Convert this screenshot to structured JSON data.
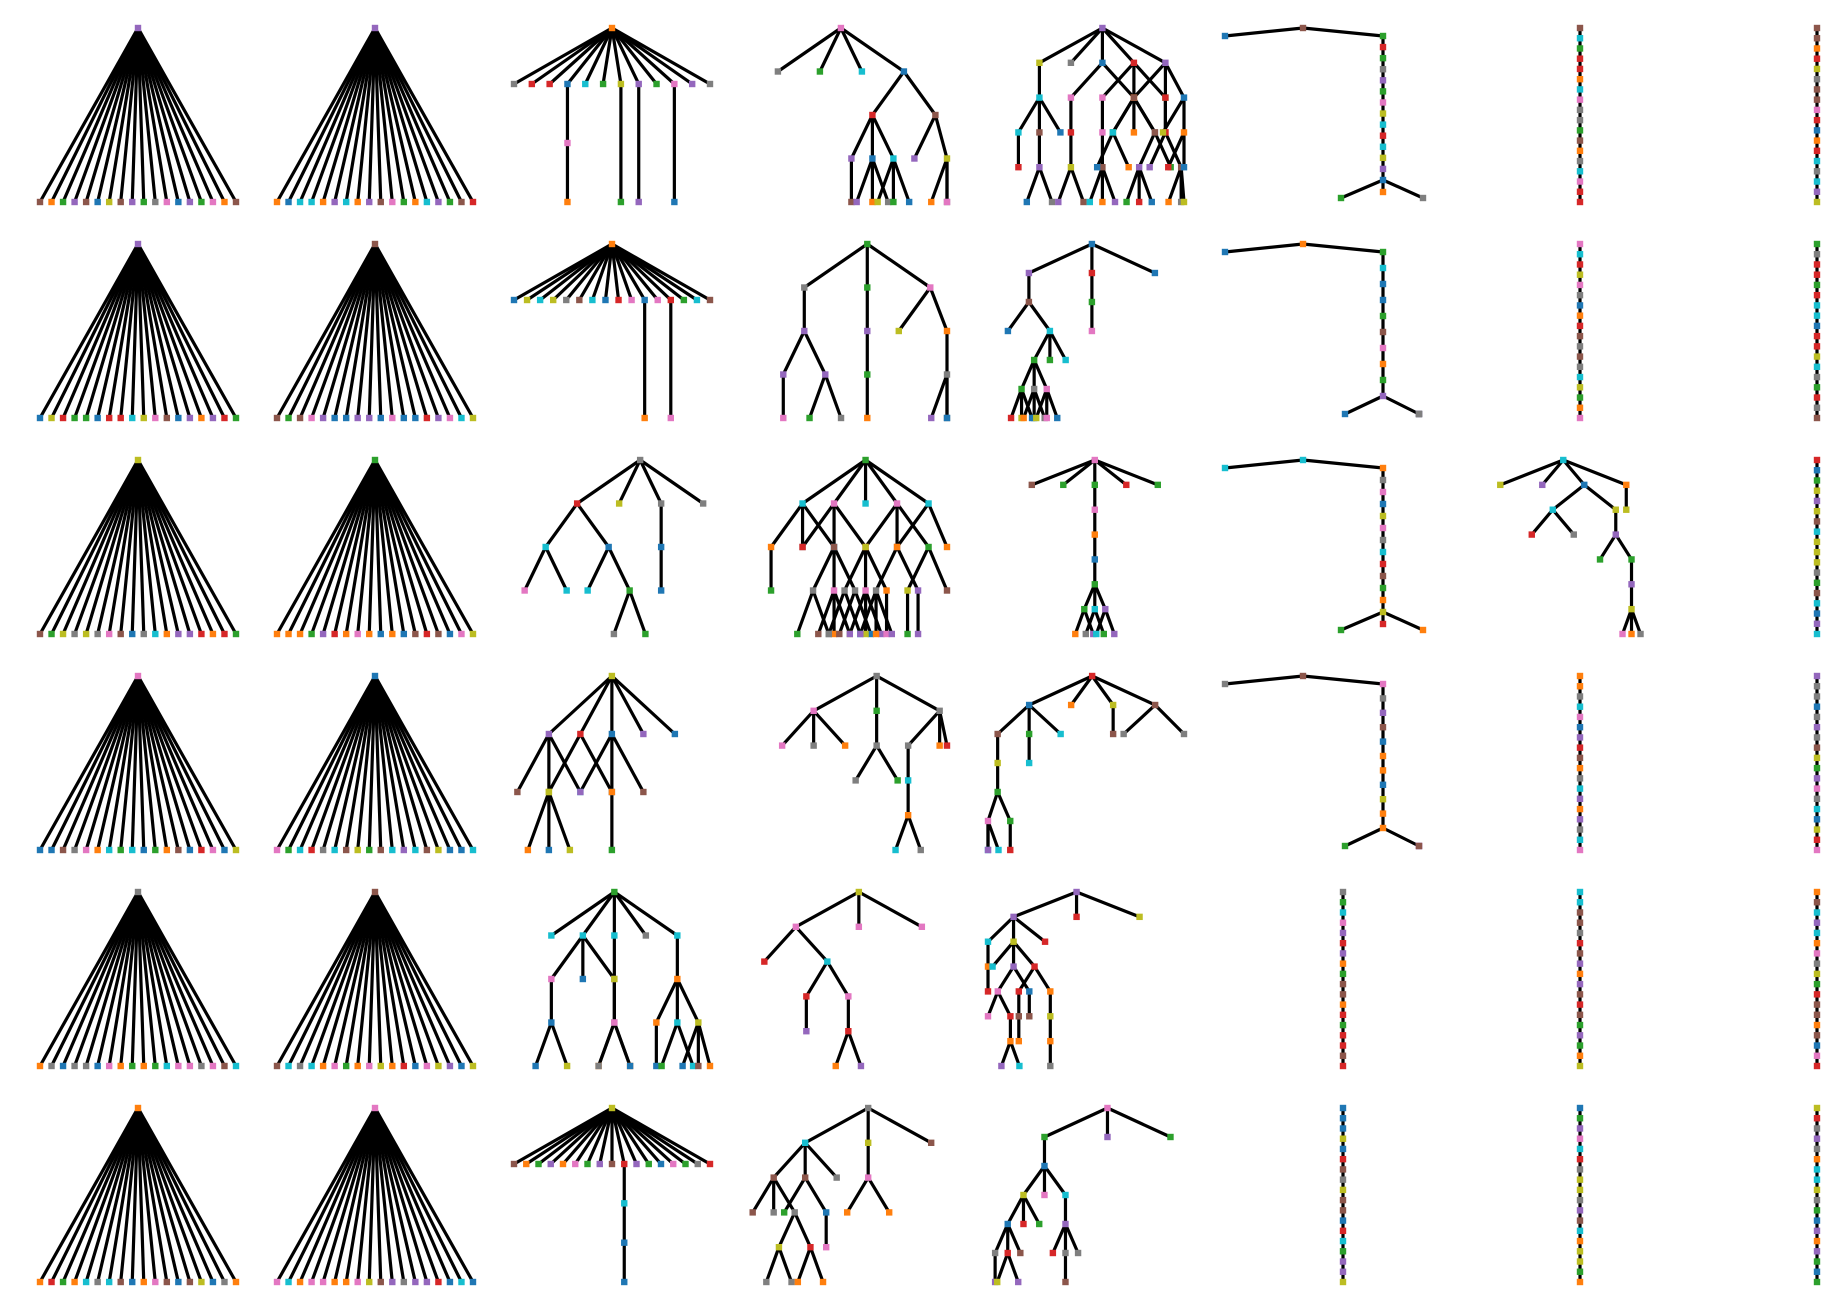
{
  "figure": {
    "type": "tree-grid",
    "rows": 6,
    "columns": 8,
    "edge_color": "#000000",
    "background": "#ffffff",
    "node_palette": [
      "#1f77b4",
      "#ff7f0e",
      "#2ca02c",
      "#d62728",
      "#9467bd",
      "#8c564b",
      "#e377c2",
      "#7f7f7f",
      "#bcbd22",
      "#17becf"
    ]
  },
  "panels": [
    {
      "id": "r1c1",
      "row": 1,
      "col": 1,
      "kind": "star",
      "leaves": 18
    },
    {
      "id": "r1c2",
      "row": 1,
      "col": 2,
      "kind": "star",
      "leaves": 18
    },
    {
      "id": "r1c3",
      "row": 1,
      "col": 3,
      "kind": "broom",
      "top_children": 12,
      "tails": [
        [
          3,
          2
        ],
        [
          6,
          1
        ],
        [
          7,
          1
        ],
        [
          9,
          1
        ]
      ]
    },
    {
      "id": "r1c4",
      "row": 1,
      "col": 4,
      "kind": "hierarchy",
      "levels": 4,
      "branching": "mixed"
    },
    {
      "id": "r1c5",
      "row": 1,
      "col": 5,
      "kind": "hierarchy",
      "levels": 5,
      "branching": "mixed"
    },
    {
      "id": "r1c6",
      "row": 1,
      "col": 6,
      "kind": "chain-fork",
      "chain_length": 14,
      "fork": 3
    },
    {
      "id": "r1c7",
      "row": 1,
      "col": 7,
      "kind": "path",
      "length": 18
    },
    {
      "id": "r1c8",
      "row": 1,
      "col": 8,
      "kind": "path",
      "length": 18
    },
    {
      "id": "r2c1",
      "row": 2,
      "col": 1,
      "kind": "star",
      "leaves": 18
    },
    {
      "id": "r2c2",
      "row": 2,
      "col": 2,
      "kind": "star",
      "leaves": 18
    },
    {
      "id": "r2c3",
      "row": 2,
      "col": 3,
      "kind": "broom",
      "top_children": 16,
      "tails": [
        [
          10,
          1
        ],
        [
          12,
          1
        ]
      ]
    },
    {
      "id": "r2c4",
      "row": 2,
      "col": 4,
      "kind": "hierarchy",
      "levels": 4,
      "branching": "mixed"
    },
    {
      "id": "r2c5",
      "row": 2,
      "col": 5,
      "kind": "hierarchy",
      "levels": 6,
      "branching": "mixed"
    },
    {
      "id": "r2c6",
      "row": 2,
      "col": 6,
      "kind": "chain-fork",
      "chain_length": 10,
      "fork": 2
    },
    {
      "id": "r2c7",
      "row": 2,
      "col": 7,
      "kind": "path",
      "length": 18
    },
    {
      "id": "r2c8",
      "row": 2,
      "col": 8,
      "kind": "path",
      "length": 18
    },
    {
      "id": "r3c1",
      "row": 3,
      "col": 1,
      "kind": "star",
      "leaves": 18
    },
    {
      "id": "r3c2",
      "row": 3,
      "col": 2,
      "kind": "star",
      "leaves": 18
    },
    {
      "id": "r3c3",
      "row": 3,
      "col": 3,
      "kind": "hierarchy",
      "levels": 4,
      "branching": "mixed"
    },
    {
      "id": "r3c4",
      "row": 3,
      "col": 4,
      "kind": "hierarchy",
      "levels": 4,
      "branching": "mixed"
    },
    {
      "id": "r3c5",
      "row": 3,
      "col": 5,
      "kind": "hierarchy",
      "levels": 7,
      "branching": "mixed"
    },
    {
      "id": "r3c6",
      "row": 3,
      "col": 6,
      "kind": "chain-fork",
      "chain_length": 13,
      "fork": 3
    },
    {
      "id": "r3c7",
      "row": 3,
      "col": 7,
      "kind": "hierarchy",
      "levels": 7,
      "branching": "mixed"
    },
    {
      "id": "r3c8",
      "row": 3,
      "col": 8,
      "kind": "path",
      "length": 18
    },
    {
      "id": "r4c1",
      "row": 4,
      "col": 1,
      "kind": "star",
      "leaves": 18
    },
    {
      "id": "r4c2",
      "row": 4,
      "col": 2,
      "kind": "star",
      "leaves": 18
    },
    {
      "id": "r4c3",
      "row": 4,
      "col": 3,
      "kind": "hierarchy",
      "levels": 3,
      "branching": "mixed"
    },
    {
      "id": "r4c4",
      "row": 4,
      "col": 4,
      "kind": "hierarchy",
      "levels": 5,
      "branching": "mixed"
    },
    {
      "id": "r4c5",
      "row": 4,
      "col": 5,
      "kind": "hierarchy",
      "levels": 6,
      "branching": "mixed"
    },
    {
      "id": "r4c6",
      "row": 4,
      "col": 6,
      "kind": "chain-fork",
      "chain_length": 11,
      "fork": 2
    },
    {
      "id": "r4c7",
      "row": 4,
      "col": 7,
      "kind": "path",
      "length": 18
    },
    {
      "id": "r4c8",
      "row": 4,
      "col": 8,
      "kind": "path",
      "length": 18
    },
    {
      "id": "r5c1",
      "row": 5,
      "col": 1,
      "kind": "star",
      "leaves": 18
    },
    {
      "id": "r5c2",
      "row": 5,
      "col": 2,
      "kind": "star",
      "leaves": 18
    },
    {
      "id": "r5c3",
      "row": 5,
      "col": 3,
      "kind": "hierarchy",
      "levels": 4,
      "branching": "mixed"
    },
    {
      "id": "r5c4",
      "row": 5,
      "col": 4,
      "kind": "hierarchy",
      "levels": 5,
      "branching": "mixed"
    },
    {
      "id": "r5c5",
      "row": 5,
      "col": 5,
      "kind": "hierarchy",
      "levels": 7,
      "branching": "mixed"
    },
    {
      "id": "r5c6",
      "row": 5,
      "col": 6,
      "kind": "path",
      "length": 18
    },
    {
      "id": "r5c7",
      "row": 5,
      "col": 7,
      "kind": "path",
      "length": 18
    },
    {
      "id": "r5c8",
      "row": 5,
      "col": 8,
      "kind": "path",
      "length": 18
    },
    {
      "id": "r6c1",
      "row": 6,
      "col": 1,
      "kind": "star",
      "leaves": 18
    },
    {
      "id": "r6c2",
      "row": 6,
      "col": 2,
      "kind": "star",
      "leaves": 18
    },
    {
      "id": "r6c3",
      "row": 6,
      "col": 3,
      "kind": "broom",
      "top_children": 17,
      "tails": [
        [
          9,
          3
        ]
      ]
    },
    {
      "id": "r6c4",
      "row": 6,
      "col": 4,
      "kind": "hierarchy",
      "levels": 5,
      "branching": "mixed"
    },
    {
      "id": "r6c5",
      "row": 6,
      "col": 5,
      "kind": "hierarchy",
      "levels": 6,
      "branching": "mixed"
    },
    {
      "id": "r6c6",
      "row": 6,
      "col": 6,
      "kind": "path",
      "length": 18
    },
    {
      "id": "r6c7",
      "row": 6,
      "col": 7,
      "kind": "path",
      "length": 18
    },
    {
      "id": "r6c8",
      "row": 6,
      "col": 8,
      "kind": "path",
      "length": 18
    }
  ]
}
